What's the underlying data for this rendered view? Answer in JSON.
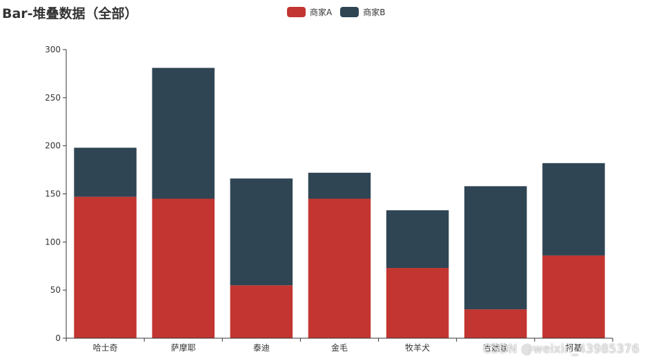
{
  "chart_data": {
    "type": "bar",
    "stacked": true,
    "title": "Bar-堆叠数据（全部）",
    "categories": [
      "哈士奇",
      "萨摩耶",
      "泰迪",
      "金毛",
      "牧羊犬",
      "吉娃娃",
      "柯基"
    ],
    "series": [
      {
        "name": "商家A",
        "color": "#c23531",
        "values": [
          147,
          145,
          55,
          145,
          73,
          30,
          86
        ]
      },
      {
        "name": "商家B",
        "color": "#2f4554",
        "values": [
          51,
          136,
          111,
          27,
          60,
          128,
          96
        ]
      }
    ],
    "ylim": [
      0,
      300
    ],
    "yticks": [
      "0",
      "50",
      "100",
      "150",
      "200",
      "250",
      "300"
    ],
    "grid": false,
    "legend_position": "top-center"
  },
  "watermark": "CSDN @weixin_43985376"
}
